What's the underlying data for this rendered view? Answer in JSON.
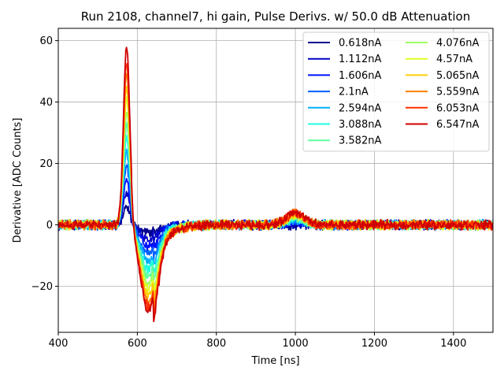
{
  "chart_data": {
    "type": "line",
    "title": "Run 2108, channel7, hi gain, Pulse Derivs. w/ 50.0 dB Attenuation",
    "xlabel": "Time [ns]",
    "ylabel": "Derivative [ADC Counts]",
    "xlim": [
      400,
      1500
    ],
    "ylim": [
      -35,
      64
    ],
    "x_ticks": [
      400,
      600,
      800,
      1000,
      1200,
      1400
    ],
    "x_tick_labels": [
      "400",
      "600",
      "800",
      "1000",
      "1200",
      "1400"
    ],
    "y_ticks": [
      -20,
      0,
      20,
      40,
      60
    ],
    "y_tick_labels": [
      "−20",
      "0",
      "20",
      "40",
      "60"
    ],
    "grid": true,
    "legend": "top-right",
    "legend_columns": 2,
    "noise_amplitude": 1.3,
    "series": [
      {
        "name": "0.618nA",
        "color": "#00008f",
        "peak": 5.5,
        "trough": -2.5,
        "bump": 0.0
      },
      {
        "name": "1.112nA",
        "color": "#0000c8",
        "peak": 10.5,
        "trough": -4.5,
        "bump": 0.5
      },
      {
        "name": "1.606nA",
        "color": "#0010ff",
        "peak": 15.0,
        "trough": -7.0,
        "bump": 0.9
      },
      {
        "name": "2.1nA",
        "color": "#0060ff",
        "peak": 19.5,
        "trough": -9.5,
        "bump": 1.3
      },
      {
        "name": "2.594nA",
        "color": "#00b0ff",
        "peak": 24.0,
        "trough": -12.0,
        "bump": 1.7
      },
      {
        "name": "3.088nA",
        "color": "#20ffdf",
        "peak": 28.5,
        "trough": -14.5,
        "bump": 2.0
      },
      {
        "name": "3.582nA",
        "color": "#5fffa0",
        "peak": 32.5,
        "trough": -16.5,
        "bump": 2.4
      },
      {
        "name": "4.076nA",
        "color": "#a0ff5f",
        "peak": 37.0,
        "trough": -19.0,
        "bump": 2.7
      },
      {
        "name": "4.57nA",
        "color": "#dfff20",
        "peak": 41.0,
        "trough": -21.0,
        "bump": 3.0
      },
      {
        "name": "5.065nA",
        "color": "#ffd000",
        "peak": 45.0,
        "trough": -23.0,
        "bump": 3.3
      },
      {
        "name": "5.559nA",
        "color": "#ff7f00",
        "peak": 49.0,
        "trough": -25.0,
        "bump": 3.6
      },
      {
        "name": "6.053nA",
        "color": "#ff3000",
        "peak": 53.0,
        "trough": -26.5,
        "bump": 3.9
      },
      {
        "name": "6.547nA",
        "color": "#cf0000",
        "peak": 58.0,
        "trough": -28.5,
        "bump": 4.2
      }
    ]
  }
}
